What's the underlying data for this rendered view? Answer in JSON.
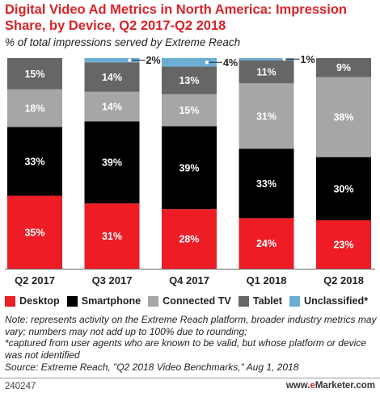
{
  "header": {
    "title": "Digital Video Ad Metrics in North America: Impression Share, by Device, Q2 2017-Q2 2018",
    "subtitle": "% of total impressions served by Extreme Reach"
  },
  "chart_data": {
    "type": "bar",
    "stacked": true,
    "orientation": "vertical",
    "categories": [
      "Q2 2017",
      "Q3 2017",
      "Q4 2017",
      "Q1 2018",
      "Q2 2018"
    ],
    "series": [
      {
        "name": "Desktop",
        "color": "#ee1c25",
        "values": [
          35,
          31,
          28,
          24,
          23
        ],
        "labels": [
          "35%",
          "31%",
          "28%",
          "24%",
          "23%"
        ]
      },
      {
        "name": "Smartphone",
        "color": "#000000",
        "values": [
          33,
          39,
          39,
          33,
          30
        ],
        "labels": [
          "33%",
          "39%",
          "39%",
          "33%",
          "30%"
        ]
      },
      {
        "name": "Connected TV",
        "color": "#a6a6a6",
        "values": [
          18,
          14,
          15,
          31,
          38
        ],
        "labels": [
          "18%",
          "14%",
          "15%",
          "31%",
          "38%"
        ]
      },
      {
        "name": "Tablet",
        "color": "#666666",
        "values": [
          15,
          14,
          13,
          11,
          9
        ],
        "labels": [
          "15%",
          "14%",
          "13%",
          "11%",
          "9%"
        ]
      },
      {
        "name": "Unclassified*",
        "color": "#6aaed6",
        "values": [
          0,
          2,
          4,
          1,
          0
        ],
        "labels": [
          "",
          "2%",
          "4%",
          "1%",
          ""
        ]
      }
    ],
    "ylim": [
      0,
      100
    ],
    "grid": false,
    "legend_position": "bottom"
  },
  "legend": {
    "items": [
      {
        "label": "Desktop",
        "color": "#ee1c25"
      },
      {
        "label": "Smartphone",
        "color": "#000000"
      },
      {
        "label": "Connected TV",
        "color": "#a6a6a6"
      },
      {
        "label": "Tablet",
        "color": "#666666"
      },
      {
        "label": "Unclassified*",
        "color": "#6aaed6"
      }
    ]
  },
  "notes": {
    "note": "Note: represents activity on the Extreme Reach platform, broader industry metrics may vary; numbers may not add up to 100% due to rounding;",
    "footnote": "*captured from user agents who are known to be valid, but whose platform or device was not identified",
    "source": "Source: Extreme Reach, \"Q2 2018 Video Benchmarks,\" Aug 1, 2018"
  },
  "footer": {
    "id": "240247",
    "site": "www.",
    "brand_accent": "e",
    "brand_rest": "Marketer",
    "tld": ".com"
  }
}
